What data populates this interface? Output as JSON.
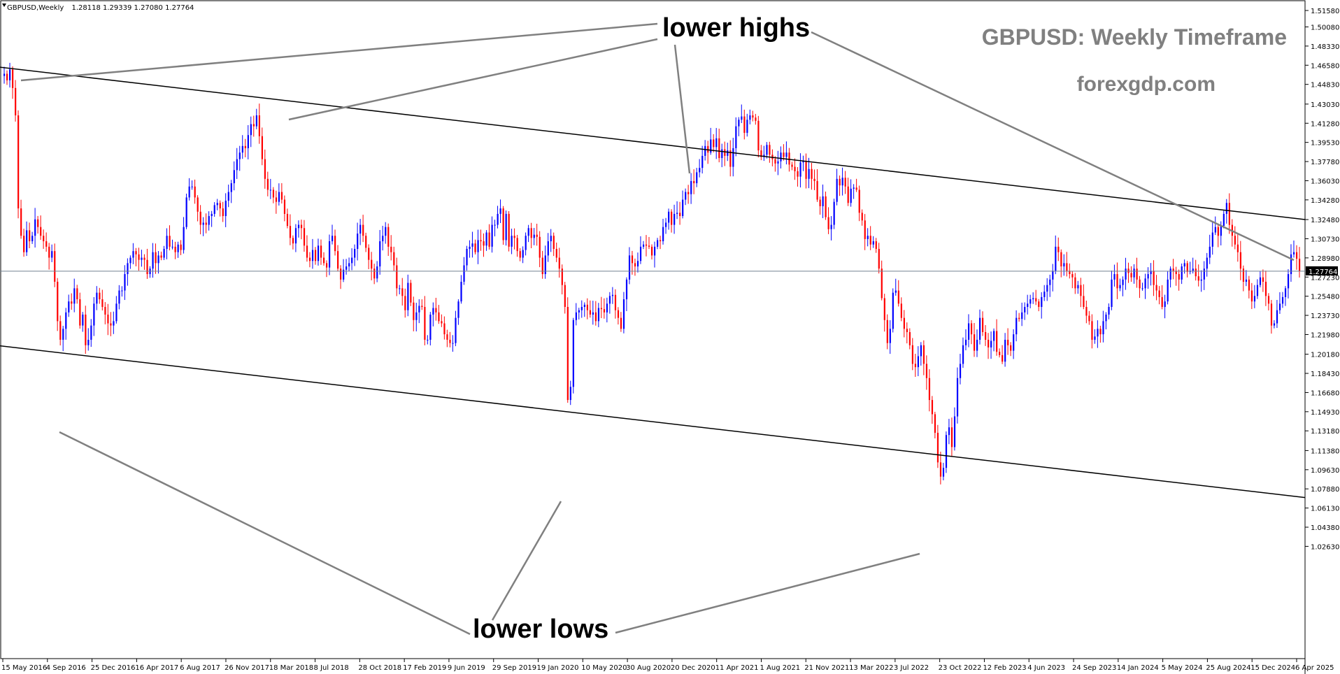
{
  "header": {
    "symbol": "GBPUSD,Weekly",
    "ohlc": "1.28118 1.29339 1.27080 1.27764"
  },
  "title": "GBPUSD: Weekly Timeframe",
  "subtitle": "forexgdp.com",
  "annotations": {
    "top": "lower highs",
    "bottom": "lower lows"
  },
  "current_price_label": "1.27764",
  "colors": {
    "bull": "#0000ff",
    "bear": "#ff0000",
    "trendline": "#000000",
    "pointer": "#808080",
    "price_line": "#708090",
    "title": "#808080"
  },
  "chart_data": {
    "type": "candlestick",
    "x_tick_labels": [
      "15 May 2016",
      "4 Sep 2016",
      "25 Dec 2016",
      "16 Apr 2017",
      "6 Aug 2017",
      "26 Nov 2017",
      "18 Mar 2018",
      "8 Jul 2018",
      "28 Oct 2018",
      "17 Feb 2019",
      "9 Jun 2019",
      "29 Sep 2019",
      "19 Jan 2020",
      "10 May 2020",
      "30 Aug 2020",
      "20 Dec 2020",
      "11 Apr 2021",
      "1 Aug 2021",
      "21 Nov 2021",
      "13 Mar 2022",
      "3 Jul 2022",
      "23 Oct 2022",
      "12 Feb 2023",
      "4 Jun 2023",
      "24 Sep 2023",
      "14 Jan 2024",
      "5 May 2024",
      "25 Aug 2024",
      "15 Dec 2024",
      "6 Apr 2025"
    ],
    "y_tick_labels": [
      "1.51580",
      "1.50080",
      "1.48330",
      "1.46580",
      "1.44830",
      "1.43030",
      "1.41280",
      "1.39530",
      "1.37780",
      "1.36030",
      "1.34280",
      "1.32480",
      "1.30730",
      "1.28980",
      "1.27230",
      "1.25480",
      "1.23730",
      "1.21980",
      "1.20180",
      "1.18430",
      "1.16680",
      "1.14930",
      "1.13180",
      "1.11380",
      "1.09630",
      "1.07880",
      "1.06130",
      "1.04380",
      "1.02630"
    ],
    "ylim": [
      1.0263,
      1.5158
    ],
    "current_price": 1.27764,
    "weekly_closes": [
      1.458,
      1.452,
      1.462,
      1.445,
      1.42,
      1.335,
      1.31,
      1.295,
      1.315,
      1.305,
      1.31,
      1.325,
      1.318,
      1.31,
      1.305,
      1.3,
      1.29,
      1.296,
      1.268,
      1.232,
      1.215,
      1.225,
      1.24,
      1.25,
      1.248,
      1.262,
      1.252,
      1.228,
      1.238,
      1.21,
      1.215,
      1.228,
      1.248,
      1.258,
      1.252,
      1.245,
      1.238,
      1.23,
      1.228,
      1.232,
      1.248,
      1.26,
      1.26,
      1.275,
      1.285,
      1.29,
      1.296,
      1.293,
      1.288,
      1.29,
      1.288,
      1.275,
      1.28,
      1.295,
      1.285,
      1.292,
      1.29,
      1.298,
      1.31,
      1.3,
      1.3,
      1.295,
      1.302,
      1.297,
      1.318,
      1.345,
      1.355,
      1.355,
      1.345,
      1.332,
      1.32,
      1.322,
      1.32,
      1.328,
      1.33,
      1.338,
      1.34,
      1.335,
      1.328,
      1.342,
      1.35,
      1.358,
      1.37,
      1.38,
      1.386,
      1.392,
      1.39,
      1.402,
      1.412,
      1.41,
      1.42,
      1.401,
      1.38,
      1.362,
      1.352,
      1.352,
      1.345,
      1.341,
      1.35,
      1.343,
      1.33,
      1.319,
      1.308,
      1.303,
      1.317,
      1.32,
      1.317,
      1.301,
      1.29,
      1.287,
      1.297,
      1.287,
      1.301,
      1.29,
      1.285,
      1.281,
      1.305,
      1.31,
      1.296,
      1.28,
      1.27,
      1.279,
      1.282,
      1.285,
      1.29,
      1.298,
      1.312,
      1.32,
      1.31,
      1.299,
      1.288,
      1.28,
      1.271,
      1.282,
      1.305,
      1.31,
      1.318,
      1.3,
      1.295,
      1.283,
      1.262,
      1.262,
      1.255,
      1.242,
      1.267,
      1.249,
      1.233,
      1.24,
      1.246,
      1.245,
      1.215,
      1.215,
      1.238,
      1.244,
      1.24,
      1.232,
      1.23,
      1.22,
      1.215,
      1.212,
      1.212,
      1.235,
      1.25,
      1.268,
      1.283,
      1.298,
      1.3,
      1.303,
      1.295,
      1.306,
      1.305,
      1.301,
      1.313,
      1.3,
      1.32,
      1.32,
      1.33,
      1.335,
      1.306,
      1.33,
      1.3,
      1.31,
      1.308,
      1.296,
      1.29,
      1.297,
      1.31,
      1.317,
      1.308,
      1.311,
      1.309,
      1.29,
      1.275,
      1.292,
      1.305,
      1.31,
      1.298,
      1.29,
      1.28,
      1.265,
      1.245,
      1.16,
      1.172,
      1.233,
      1.24,
      1.242,
      1.245,
      1.247,
      1.242,
      1.238,
      1.24,
      1.232,
      1.244,
      1.243,
      1.24,
      1.248,
      1.255,
      1.256,
      1.242,
      1.235,
      1.225,
      1.252,
      1.27,
      1.292,
      1.285,
      1.282,
      1.287,
      1.3,
      1.302,
      1.301,
      1.3,
      1.292,
      1.3,
      1.306,
      1.305,
      1.318,
      1.322,
      1.332,
      1.32,
      1.33,
      1.331,
      1.328,
      1.343,
      1.35,
      1.348,
      1.36,
      1.358,
      1.368,
      1.372,
      1.383,
      1.392,
      1.386,
      1.398,
      1.391,
      1.399,
      1.381,
      1.389,
      1.383,
      1.388,
      1.373,
      1.39,
      1.41,
      1.416,
      1.419,
      1.404,
      1.416,
      1.42,
      1.418,
      1.415,
      1.388,
      1.382,
      1.384,
      1.393,
      1.384,
      1.38,
      1.376,
      1.378,
      1.386,
      1.382,
      1.386,
      1.375,
      1.373,
      1.369,
      1.364,
      1.377,
      1.378,
      1.362,
      1.371,
      1.362,
      1.36,
      1.343,
      1.337,
      1.346,
      1.327,
      1.316,
      1.32,
      1.341,
      1.362,
      1.356,
      1.363,
      1.355,
      1.34,
      1.353,
      1.354,
      1.352,
      1.331,
      1.324,
      1.307,
      1.31,
      1.302,
      1.305,
      1.298,
      1.28,
      1.253,
      1.233,
      1.212,
      1.225,
      1.258,
      1.26,
      1.248,
      1.235,
      1.225,
      1.222,
      1.21,
      1.193,
      1.19,
      1.2,
      1.21,
      1.193,
      1.18,
      1.16,
      1.147,
      1.13,
      1.103,
      1.09,
      1.098,
      1.128,
      1.135,
      1.117,
      1.145,
      1.18,
      1.193,
      1.21,
      1.215,
      1.23,
      1.22,
      1.205,
      1.215,
      1.235,
      1.222,
      1.215,
      1.208,
      1.214,
      1.223,
      1.204,
      1.201,
      1.195,
      1.215,
      1.21,
      1.205,
      1.22,
      1.235,
      1.234,
      1.24,
      1.245,
      1.248,
      1.252,
      1.253,
      1.25,
      1.245,
      1.254,
      1.259,
      1.265,
      1.27,
      1.278,
      1.3,
      1.295,
      1.282,
      1.285,
      1.278,
      1.275,
      1.272,
      1.262,
      1.265,
      1.255,
      1.245,
      1.237,
      1.232,
      1.215,
      1.218,
      1.225,
      1.22,
      1.232,
      1.238,
      1.245,
      1.27,
      1.275,
      1.262,
      1.265,
      1.27,
      1.28,
      1.276,
      1.272,
      1.28,
      1.27,
      1.262,
      1.262,
      1.271,
      1.275,
      1.278,
      1.265,
      1.26,
      1.254,
      1.245,
      1.25,
      1.27,
      1.28,
      1.278,
      1.275,
      1.27,
      1.282,
      1.285,
      1.277,
      1.278,
      1.28,
      1.273,
      1.269,
      1.27,
      1.28,
      1.29,
      1.3,
      1.313,
      1.318,
      1.31,
      1.319,
      1.33,
      1.34,
      1.32,
      1.31,
      1.302,
      1.295,
      1.28,
      1.268,
      1.27,
      1.26,
      1.25,
      1.255,
      1.265,
      1.272,
      1.268,
      1.255,
      1.248,
      1.228,
      1.23,
      1.242,
      1.248,
      1.254,
      1.262,
      1.275,
      1.293,
      1.295,
      1.289,
      1.278
    ],
    "trendlines": [
      {
        "name": "upper channel",
        "from": {
          "date": "15 May 2016",
          "price": 1.464
        },
        "to": {
          "date": "6 Apr 2025",
          "price": 1.3248
        }
      },
      {
        "name": "lower channel",
        "from": {
          "date": "15 May 2016",
          "price": 1.2095
        },
        "to": {
          "date": "6 Apr 2025",
          "price": 1.0709
        }
      }
    ]
  }
}
